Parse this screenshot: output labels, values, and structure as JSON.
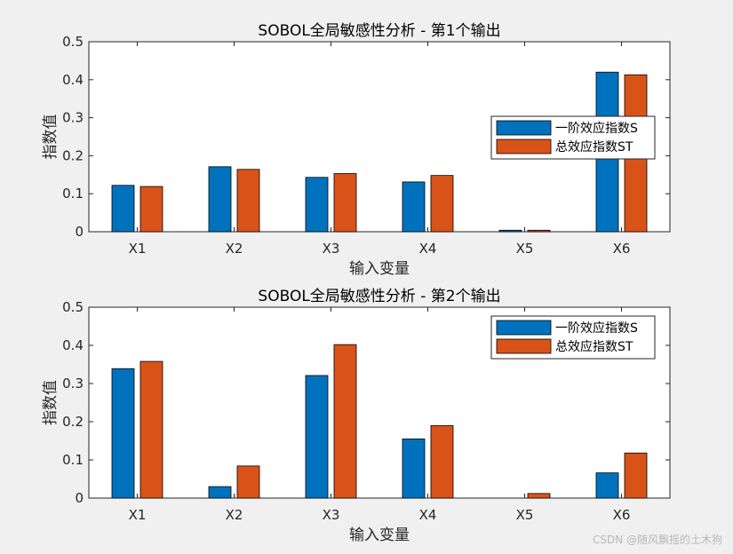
{
  "chart_data": [
    {
      "type": "bar",
      "title": "SOBOL全局敏感性分析 - 第1个输出",
      "xlabel": "输入变量",
      "ylabel": "指数值",
      "categories": [
        "X1",
        "X2",
        "X3",
        "X4",
        "X5",
        "X6"
      ],
      "ylim": [
        0,
        0.5
      ],
      "yticks": [
        "0",
        "0.1",
        "0.2",
        "0.3",
        "0.4",
        "0.5"
      ],
      "legend_position": "right",
      "series": [
        {
          "name": "一阶效应指数S",
          "color": "#0072bd",
          "values": [
            0.122,
            0.171,
            0.143,
            0.131,
            0.004,
            0.42
          ]
        },
        {
          "name": "总效应指数ST",
          "color": "#d95319",
          "values": [
            0.119,
            0.164,
            0.153,
            0.148,
            0.004,
            0.413
          ]
        }
      ]
    },
    {
      "type": "bar",
      "title": "SOBOL全局敏感性分析 - 第2个输出",
      "xlabel": "输入变量",
      "ylabel": "指数值",
      "categories": [
        "X1",
        "X2",
        "X3",
        "X4",
        "X5",
        "X6"
      ],
      "ylim": [
        0,
        0.5
      ],
      "yticks": [
        "0",
        "0.1",
        "0.2",
        "0.3",
        "0.4",
        "0.5"
      ],
      "legend_position": "top-right",
      "series": [
        {
          "name": "一阶效应指数S",
          "color": "#0072bd",
          "values": [
            0.339,
            0.03,
            0.321,
            0.155,
            0.0,
            0.066
          ]
        },
        {
          "name": "总效应指数ST",
          "color": "#d95319",
          "values": [
            0.358,
            0.084,
            0.402,
            0.19,
            0.012,
            0.118
          ]
        }
      ]
    }
  ],
  "watermark": "CSDN @随风飘摇的土木狗"
}
